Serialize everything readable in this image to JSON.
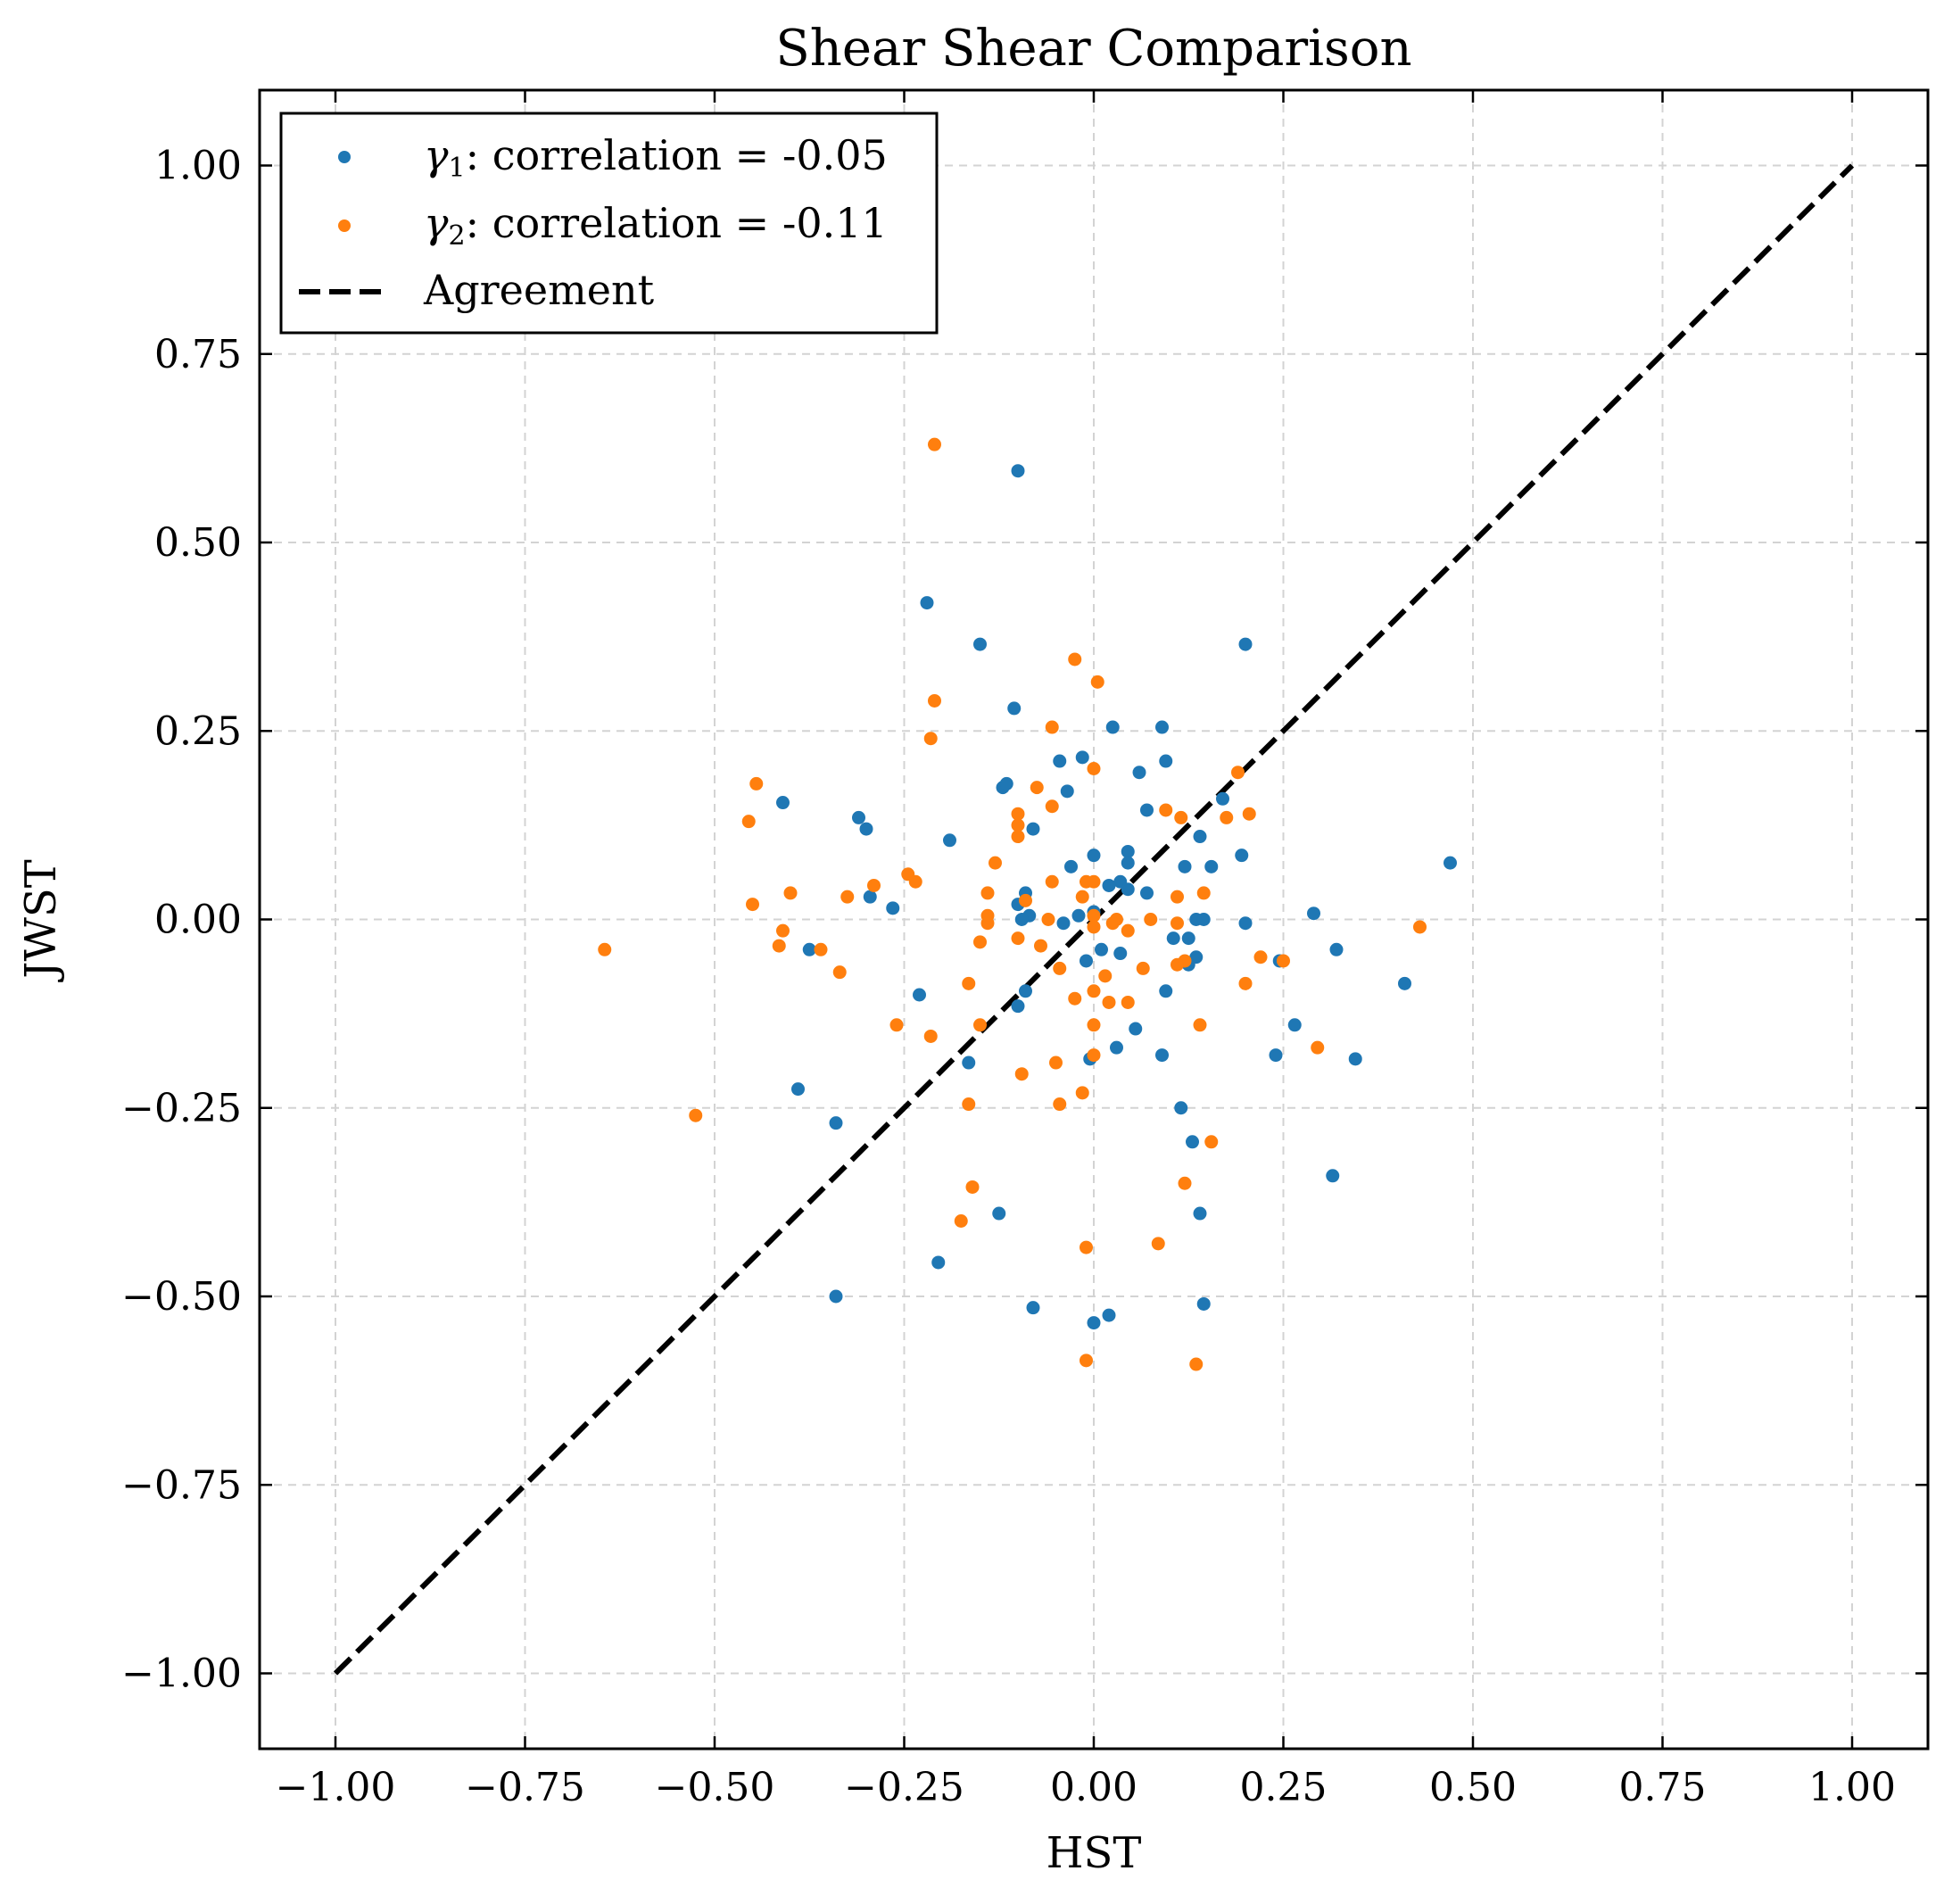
{
  "chart_data": {
    "type": "scatter",
    "title": "Shear Shear Comparison",
    "xlabel": "HST",
    "ylabel": "JWST",
    "xlim": [
      -1.1,
      1.1
    ],
    "ylim": [
      -1.1,
      1.1
    ],
    "xticks": [
      -1.0,
      -0.75,
      -0.5,
      -0.25,
      0.0,
      0.25,
      0.5,
      0.75,
      1.0
    ],
    "yticks": [
      -1.0,
      -0.75,
      -0.5,
      -0.25,
      0.0,
      0.25,
      0.5,
      0.75,
      1.0
    ],
    "xtick_labels": [
      "−1.00",
      "−0.75",
      "−0.50",
      "−0.25",
      "0.00",
      "0.25",
      "0.50",
      "0.75",
      "1.00"
    ],
    "ytick_labels": [
      "−1.00",
      "−0.75",
      "−0.50",
      "−0.25",
      "0.00",
      "0.25",
      "0.50",
      "0.75",
      "1.00"
    ],
    "grid": true,
    "legend_position": "top-left",
    "series": [
      {
        "label_symbol": "γ",
        "label_sub": "1",
        "label_rest": ": correlation = -0.05",
        "color": "#1f77b4",
        "points": [
          [
            -0.1,
            0.595
          ],
          [
            -0.22,
            0.42
          ],
          [
            -0.15,
            0.365
          ],
          [
            0.2,
            0.365
          ],
          [
            -0.105,
            0.28
          ],
          [
            0.025,
            0.255
          ],
          [
            0.09,
            0.255
          ],
          [
            -0.015,
            0.215
          ],
          [
            -0.045,
            0.21
          ],
          [
            0.095,
            0.21
          ],
          [
            0.06,
            0.195
          ],
          [
            -0.12,
            0.175
          ],
          [
            -0.115,
            0.18
          ],
          [
            -0.035,
            0.17
          ],
          [
            0.17,
            0.16
          ],
          [
            -0.41,
            0.155
          ],
          [
            -0.31,
            0.135
          ],
          [
            -0.3,
            0.12
          ],
          [
            0.07,
            0.145
          ],
          [
            -0.08,
            0.12
          ],
          [
            0.14,
            0.11
          ],
          [
            -0.19,
            0.105
          ],
          [
            0.045,
            0.09
          ],
          [
            0.0,
            0.085
          ],
          [
            0.195,
            0.085
          ],
          [
            0.045,
            0.075
          ],
          [
            -0.03,
            0.07
          ],
          [
            0.12,
            0.07
          ],
          [
            0.155,
            0.07
          ],
          [
            0.47,
            0.075
          ],
          [
            0.035,
            0.05
          ],
          [
            0.02,
            0.045
          ],
          [
            0.045,
            0.04
          ],
          [
            0.07,
            0.035
          ],
          [
            -0.09,
            0.035
          ],
          [
            -0.295,
            0.03
          ],
          [
            -0.1,
            0.02
          ],
          [
            -0.265,
            0.015
          ],
          [
            -0.085,
            0.005
          ],
          [
            -0.02,
            0.005
          ],
          [
            0.29,
            0.008
          ],
          [
            0.0,
            0.01
          ],
          [
            -0.095,
            0.0
          ],
          [
            0.135,
            0.0
          ],
          [
            0.145,
            0.0
          ],
          [
            -0.04,
            -0.005
          ],
          [
            0.2,
            -0.005
          ],
          [
            0.105,
            -0.025
          ],
          [
            0.125,
            -0.025
          ],
          [
            -0.375,
            -0.04
          ],
          [
            0.32,
            -0.04
          ],
          [
            0.01,
            -0.04
          ],
          [
            0.035,
            -0.045
          ],
          [
            -0.01,
            -0.055
          ],
          [
            0.135,
            -0.05
          ],
          [
            0.245,
            -0.055
          ],
          [
            0.125,
            -0.06
          ],
          [
            -0.09,
            -0.095
          ],
          [
            0.095,
            -0.095
          ],
          [
            -0.23,
            -0.1
          ],
          [
            -0.1,
            -0.115
          ],
          [
            0.41,
            -0.085
          ],
          [
            0.055,
            -0.145
          ],
          [
            0.265,
            -0.14
          ],
          [
            0.03,
            -0.17
          ],
          [
            0.24,
            -0.18
          ],
          [
            0.345,
            -0.185
          ],
          [
            0.09,
            -0.18
          ],
          [
            -0.005,
            -0.185
          ],
          [
            -0.165,
            -0.19
          ],
          [
            -0.39,
            -0.225
          ],
          [
            0.115,
            -0.25
          ],
          [
            -0.34,
            -0.27
          ],
          [
            0.13,
            -0.295
          ],
          [
            0.315,
            -0.34
          ],
          [
            -0.125,
            -0.39
          ],
          [
            0.14,
            -0.39
          ],
          [
            -0.205,
            -0.455
          ],
          [
            -0.34,
            -0.5
          ],
          [
            0.145,
            -0.51
          ],
          [
            -0.08,
            -0.515
          ],
          [
            0.02,
            -0.525
          ],
          [
            0.0,
            -0.535
          ]
        ]
      },
      {
        "label_symbol": "γ",
        "label_sub": "2",
        "label_rest": ": correlation = -0.11",
        "color": "#ff7f0e",
        "points": [
          [
            -0.21,
            0.63
          ],
          [
            -0.025,
            0.345
          ],
          [
            0.005,
            0.315
          ],
          [
            -0.21,
            0.29
          ],
          [
            -0.055,
            0.255
          ],
          [
            -0.215,
            0.24
          ],
          [
            0.0,
            0.2
          ],
          [
            0.19,
            0.195
          ],
          [
            -0.445,
            0.18
          ],
          [
            -0.075,
            0.175
          ],
          [
            -0.055,
            0.15
          ],
          [
            0.095,
            0.145
          ],
          [
            0.205,
            0.14
          ],
          [
            0.115,
            0.135
          ],
          [
            -0.1,
            0.14
          ],
          [
            0.175,
            0.135
          ],
          [
            -0.455,
            0.13
          ],
          [
            -0.1,
            0.125
          ],
          [
            -0.1,
            0.11
          ],
          [
            -0.13,
            0.075
          ],
          [
            -0.245,
            0.06
          ],
          [
            -0.29,
            0.045
          ],
          [
            -0.235,
            0.05
          ],
          [
            -0.055,
            0.05
          ],
          [
            -0.01,
            0.05
          ],
          [
            0.0,
            0.05
          ],
          [
            -0.4,
            0.035
          ],
          [
            -0.14,
            0.035
          ],
          [
            0.145,
            0.035
          ],
          [
            -0.325,
            0.03
          ],
          [
            -0.015,
            0.03
          ],
          [
            0.11,
            0.03
          ],
          [
            -0.09,
            0.025
          ],
          [
            -0.45,
            0.02
          ],
          [
            -0.14,
            0.005
          ],
          [
            0.0,
            0.005
          ],
          [
            -0.06,
            0.0
          ],
          [
            0.03,
            0.0
          ],
          [
            0.075,
            0.0
          ],
          [
            -0.14,
            -0.005
          ],
          [
            0.11,
            -0.005
          ],
          [
            0.025,
            -0.005
          ],
          [
            0.0,
            -0.01
          ],
          [
            0.045,
            -0.015
          ],
          [
            -0.41,
            -0.015
          ],
          [
            -0.1,
            -0.025
          ],
          [
            -0.15,
            -0.03
          ],
          [
            -0.415,
            -0.035
          ],
          [
            -0.07,
            -0.035
          ],
          [
            -0.36,
            -0.04
          ],
          [
            -0.645,
            -0.04
          ],
          [
            0.22,
            -0.05
          ],
          [
            0.25,
            -0.055
          ],
          [
            0.12,
            -0.055
          ],
          [
            0.11,
            -0.06
          ],
          [
            -0.045,
            -0.065
          ],
          [
            0.065,
            -0.065
          ],
          [
            -0.335,
            -0.07
          ],
          [
            0.015,
            -0.075
          ],
          [
            0.2,
            -0.085
          ],
          [
            -0.165,
            -0.085
          ],
          [
            0.0,
            -0.095
          ],
          [
            -0.025,
            -0.105
          ],
          [
            0.02,
            -0.11
          ],
          [
            0.045,
            -0.11
          ],
          [
            0.43,
            -0.01
          ],
          [
            -0.15,
            -0.14
          ],
          [
            -0.26,
            -0.14
          ],
          [
            0.0,
            -0.14
          ],
          [
            0.14,
            -0.14
          ],
          [
            -0.215,
            -0.155
          ],
          [
            0.295,
            -0.17
          ],
          [
            0.0,
            -0.18
          ],
          [
            -0.05,
            -0.19
          ],
          [
            -0.095,
            -0.205
          ],
          [
            -0.015,
            -0.23
          ],
          [
            -0.165,
            -0.245
          ],
          [
            -0.045,
            -0.245
          ],
          [
            -0.525,
            -0.26
          ],
          [
            0.155,
            -0.295
          ],
          [
            0.12,
            -0.35
          ],
          [
            -0.16,
            -0.355
          ],
          [
            -0.175,
            -0.4
          ],
          [
            0.085,
            -0.43
          ],
          [
            -0.01,
            -0.435
          ],
          [
            -0.01,
            -0.585
          ],
          [
            0.135,
            -0.59
          ]
        ]
      }
    ],
    "reference_line": {
      "label": "Agreement",
      "color": "#000000",
      "points": [
        [
          -1.0,
          -1.0
        ],
        [
          1.0,
          1.0
        ]
      ]
    }
  }
}
